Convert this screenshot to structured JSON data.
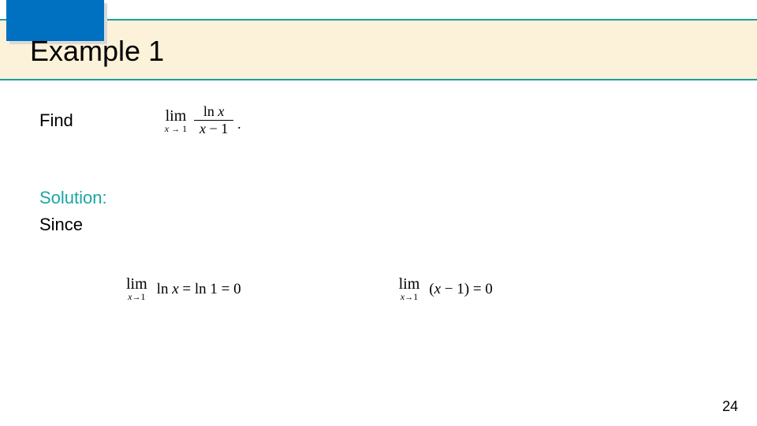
{
  "header": {
    "title": "Example 1",
    "banner_bg": "#fcf1d9",
    "rule_color": "#1b9e9e",
    "accent_box_color": "#0070c0"
  },
  "content": {
    "find_label": "Find",
    "main_limit": {
      "lim_word": "lim",
      "lim_sub": "x → 1",
      "numerator": "ln x",
      "denominator": "x − 1",
      "trailing": "."
    },
    "solution_label": "Solution:",
    "since_label": "Since",
    "equations": {
      "eq1": {
        "lim_word": "lim",
        "lim_sub": "x→1",
        "body": "ln x = ln 1 = 0"
      },
      "eq2": {
        "lim_word": "lim",
        "lim_sub": "x→1",
        "body": "(x − 1) = 0"
      }
    }
  },
  "page_number": "24",
  "colors": {
    "text": "#000000",
    "solution_text": "#1ba6a6",
    "background": "#ffffff"
  }
}
